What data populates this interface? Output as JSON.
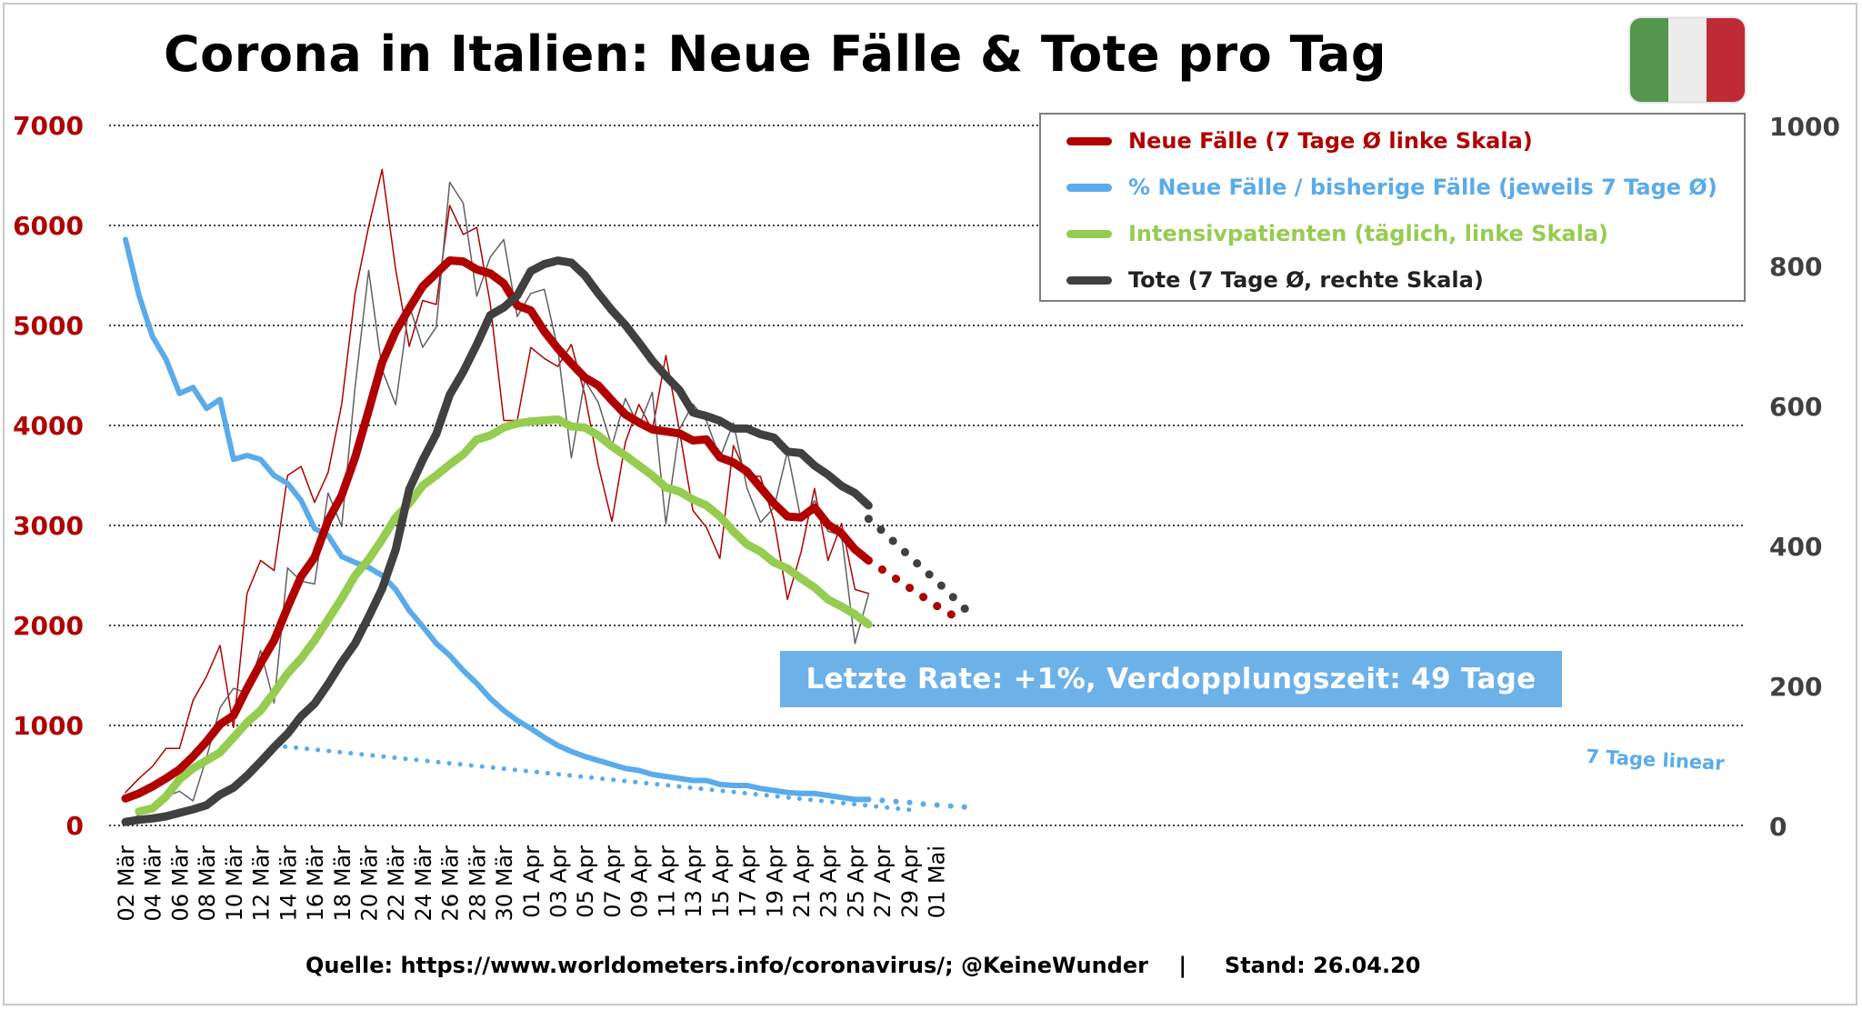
{
  "title": "Corona in Italien: Neue Fälle & Tote pro Tag",
  "flag_colors": [
    "#55964f",
    "#ececec",
    "#bf2b35"
  ],
  "legend": [
    {
      "label": "Neue Fälle (7 Tage Ø linke Skala)",
      "color": "#b00000"
    },
    {
      "label": "% Neue Fälle / bisherige Fälle (jeweils 7 Tage Ø)",
      "color": "#5aabea"
    },
    {
      "label": "Intensivpatienten (täglich, linke Skala)",
      "color": "#96cc50"
    },
    {
      "label": "Tote (7 Tage Ø, rechte Skala)",
      "color": "#404040"
    }
  ],
  "rate_box": "Letzte Rate: +1%, Verdopplungszeit: 49 Tage",
  "linear_label": "7 Tage linear",
  "source": "Quelle: https://www.worldometers.info/coronavirus/; @KeineWunder    |     Stand: 26.04.20",
  "chart_data": {
    "type": "line",
    "x_labels": [
      "02 Mär",
      "04 Mär",
      "06 Mär",
      "08 Mär",
      "10 Mär",
      "12 Mär",
      "14 Mär",
      "16 Mär",
      "18 Mär",
      "20 Mär",
      "22 Mär",
      "24 Mär",
      "26 Mär",
      "28 Mär",
      "30 Mär",
      "01 Apr",
      "03 Apr",
      "05 Apr",
      "07 Apr",
      "09 Apr",
      "11 Apr",
      "13 Apr",
      "15 Apr",
      "17 Apr",
      "19 Apr",
      "21 Apr",
      "23 Apr",
      "25 Apr",
      "27 Apr",
      "29 Apr",
      "01 Mai"
    ],
    "x_label_colors": {
      "tick": "#000000"
    },
    "y_left": {
      "min": 0,
      "max": 7000,
      "ticks": [
        "0",
        "1000",
        "2000",
        "3000",
        "4000",
        "5000",
        "6000",
        "7000"
      ],
      "color": "#b00000"
    },
    "y_right": {
      "min": 0,
      "max": 1000,
      "ticks": [
        "0",
        "200",
        "400",
        "600",
        "800",
        "1000"
      ],
      "color": "#404040"
    },
    "grid": "dotted horizontal",
    "series": [
      {
        "name": "Neue Fälle (7 Tage Ø linke Skala)",
        "axis": "left",
        "color": "#b00000",
        "width": 9,
        "values": [
          270,
          320,
          390,
          470,
          560,
          690,
          840,
          1010,
          1100,
          1370,
          1620,
          1850,
          2180,
          2490,
          2680,
          3050,
          3300,
          3680,
          4150,
          4630,
          4940,
          5170,
          5390,
          5520,
          5650,
          5640,
          5560,
          5520,
          5420,
          5200,
          5150,
          4940,
          4770,
          4620,
          4480,
          4400,
          4250,
          4110,
          4030,
          3960,
          3940,
          3920,
          3850,
          3860,
          3680,
          3630,
          3540,
          3380,
          3220,
          3090,
          3080,
          3180,
          3010,
          2920,
          2760,
          2650
        ],
        "projection": [
          2650,
          2560,
          2470,
          2380,
          2290,
          2200,
          2120,
          2040
        ]
      },
      {
        "name": "Neue Fälle (täglich)",
        "axis": "left",
        "color": "#b00000",
        "width": 1.5,
        "values": [
          330,
          470,
          590,
          770,
          770,
          1250,
          1490,
          1800,
          980,
          2320,
          2650,
          2550,
          3500,
          3590,
          3230,
          3530,
          4210,
          5320,
          5990,
          6560,
          5560,
          4790,
          5250,
          5210,
          6200,
          5910,
          5980,
          5220,
          4050,
          4050,
          4780,
          4670,
          4590,
          4810,
          4310,
          3600,
          3040,
          3830,
          4210,
          3950,
          4700,
          3950,
          3150,
          2980,
          2670,
          3800,
          3500,
          3490,
          3050,
          2260,
          2730,
          3370,
          2650,
          3020,
          2360,
          2320
        ]
      },
      {
        "name": "% Neue Fälle / bisherige Fälle (jeweils 7 Tage Ø)",
        "axis": "left",
        "color": "#5aabea",
        "width": 6,
        "values": [
          5860,
          5300,
          4890,
          4660,
          4320,
          4380,
          4170,
          4260,
          3660,
          3700,
          3660,
          3500,
          3420,
          3250,
          2970,
          2900,
          2690,
          2630,
          2580,
          2500,
          2360,
          2150,
          1990,
          1820,
          1700,
          1550,
          1420,
          1270,
          1150,
          1050,
          970,
          880,
          800,
          740,
          690,
          650,
          610,
          570,
          550,
          510,
          490,
          470,
          450,
          450,
          410,
          400,
          400,
          370,
          350,
          330,
          320,
          320,
          300,
          280,
          260,
          260
        ],
        "projection": [
          260,
          250,
          240,
          230,
          215,
          205,
          195,
          185,
          175
        ]
      },
      {
        "name": "7 Tage linear",
        "axis": "left",
        "color": "#5aabea",
        "width": 5,
        "dotted": true,
        "from_index": 11,
        "values": [
          800,
          150
        ]
      },
      {
        "name": "Intensivpatienten (täglich, linke Skala)",
        "axis": "left",
        "color": "#96cc50",
        "width": 9,
        "from_index": 1,
        "values": [
          140,
          170,
          290,
          460,
          570,
          650,
          730,
          880,
          1030,
          1150,
          1330,
          1520,
          1670,
          1850,
          2060,
          2270,
          2500,
          2660,
          2860,
          3080,
          3220,
          3400,
          3500,
          3610,
          3710,
          3860,
          3900,
          3980,
          4020,
          4040,
          4050,
          4060,
          3990,
          3980,
          3900,
          3790,
          3700,
          3600,
          3500,
          3380,
          3340,
          3260,
          3200,
          3090,
          2940,
          2810,
          2740,
          2630,
          2570,
          2470,
          2380,
          2260,
          2190,
          2110,
          2010
        ]
      },
      {
        "name": "Tote (täglich)",
        "axis": "right",
        "color": "#606060",
        "width": 1.5,
        "values": [
          5,
          15,
          27,
          41,
          49,
          35,
          97,
          168,
          196,
          189,
          250,
          175,
          368,
          349,
          345,
          475,
          427,
          627,
          793,
          651,
          601,
          743,
          683,
          712,
          919,
          889,
          756,
          812,
          837,
          727,
          760,
          766,
          681,
          525,
          636,
          604,
          542,
          610,
          570,
          619,
          431,
          566,
          602,
          578,
          525,
          575,
          482,
          433,
          454,
          534,
          437,
          464,
          420,
          415,
          260,
          330
        ]
      },
      {
        "name": "Tote (7 Tage Ø, rechte Skala)",
        "axis": "right",
        "color": "#404040",
        "width": 9,
        "values": [
          5,
          8,
          10,
          13,
          18,
          23,
          29,
          44,
          54,
          71,
          91,
          112,
          131,
          156,
          174,
          202,
          233,
          260,
          298,
          338,
          394,
          480,
          522,
          559,
          615,
          648,
          687,
          729,
          740,
          757,
          792,
          802,
          807,
          804,
          786,
          760,
          736,
          715,
          690,
          664,
          642,
          622,
          590,
          585,
          578,
          567,
          567,
          559,
          554,
          534,
          532,
          514,
          501,
          485,
          475,
          457,
          448,
          422,
          400
        ],
        "trim_to": 56,
        "projection": [
          438,
          421,
          403,
          385,
          367,
          350,
          331,
          312,
          294
        ]
      }
    ]
  }
}
